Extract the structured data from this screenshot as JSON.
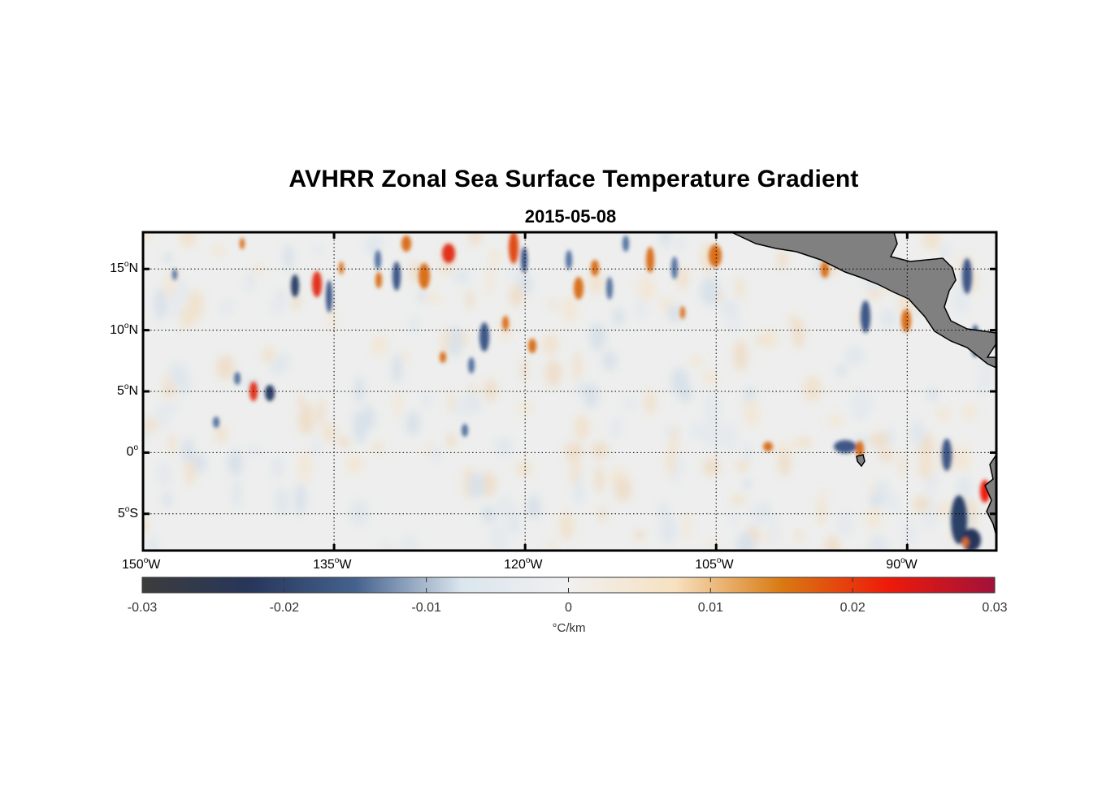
{
  "title": "AVHRR Zonal Sea Surface Temperature Gradient",
  "subtitle": "2015-05-08",
  "map": {
    "region": {
      "lon_min": -150,
      "lon_max": -83,
      "lat_min": -8,
      "lat_max": 18
    },
    "grid": "dotted",
    "land_color": "#808080",
    "x_ticks": [
      {
        "deg": "150",
        "hemi": "W"
      },
      {
        "deg": "135",
        "hemi": "W"
      },
      {
        "deg": "120",
        "hemi": "W"
      },
      {
        "deg": "105",
        "hemi": "W"
      },
      {
        "deg": "90",
        "hemi": "W"
      }
    ],
    "y_ticks": [
      {
        "deg": "15",
        "hemi": "N"
      },
      {
        "deg": "10",
        "hemi": "N"
      },
      {
        "deg": "5",
        "hemi": "N"
      },
      {
        "deg": "0",
        "hemi": ""
      },
      {
        "deg": "5",
        "hemi": "S"
      }
    ]
  },
  "colorbar": {
    "ticks": [
      "-0.03",
      "-0.02",
      "-0.01",
      "0",
      "0.01",
      "0.02",
      "0.03"
    ],
    "units": "°C/km",
    "colors": [
      "#3c3c3c",
      "#27365a",
      "#44628e",
      "#dbe6ee",
      "#f0f0f0",
      "#f7e1c0",
      "#d97a12",
      "#ee1a0a",
      "#a0123a"
    ]
  }
}
